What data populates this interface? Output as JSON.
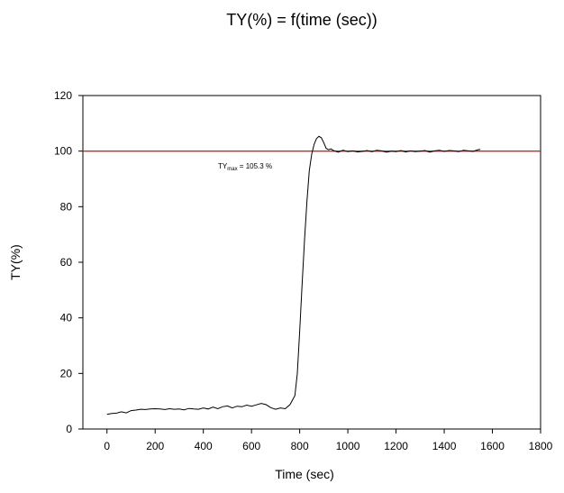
{
  "chart_data": {
    "type": "line",
    "title": "TY(%) = f(time (sec))",
    "xlabel": "Time (sec)",
    "ylabel": "TY(%)",
    "xlim": [
      -100,
      1800
    ],
    "ylim": [
      0,
      120
    ],
    "xticks": [
      0,
      200,
      400,
      600,
      800,
      1000,
      1200,
      1400,
      1600,
      1800
    ],
    "yticks": [
      0,
      20,
      40,
      60,
      80,
      100,
      120
    ],
    "grid": false,
    "reference_line": {
      "y": 100,
      "color": "#e0201a"
    },
    "annotation": {
      "base": "TY",
      "subscript": "max",
      "text": " = 105.3 %"
    },
    "series": [
      {
        "color": "#000000",
        "x": [
          0,
          20,
          40,
          60,
          80,
          100,
          120,
          140,
          160,
          180,
          200,
          220,
          240,
          260,
          280,
          300,
          320,
          340,
          360,
          380,
          400,
          420,
          440,
          460,
          480,
          500,
          520,
          540,
          560,
          580,
          600,
          620,
          640,
          660,
          680,
          700,
          720,
          740,
          760,
          780,
          790,
          800,
          810,
          820,
          830,
          840,
          850,
          860,
          870,
          880,
          890,
          900,
          910,
          920,
          930,
          940,
          960,
          980,
          1000,
          1020,
          1040,
          1060,
          1080,
          1100,
          1120,
          1140,
          1160,
          1180,
          1200,
          1220,
          1240,
          1260,
          1280,
          1300,
          1320,
          1340,
          1360,
          1380,
          1400,
          1420,
          1440,
          1460,
          1480,
          1500,
          1520,
          1540,
          1550
        ],
        "y": [
          5.3,
          5.6,
          5.7,
          6.2,
          5.8,
          6.6,
          6.8,
          7.1,
          7.0,
          7.2,
          7.3,
          7.2,
          7.0,
          7.3,
          7.1,
          7.2,
          6.9,
          7.4,
          7.2,
          7.1,
          7.6,
          7.2,
          7.9,
          7.3,
          8.0,
          8.3,
          7.6,
          8.2,
          8.0,
          8.6,
          8.2,
          8.7,
          9.2,
          8.8,
          7.7,
          7.1,
          7.6,
          7.3,
          8.8,
          12.0,
          20.0,
          35.0,
          52.0,
          68.0,
          82.0,
          93.0,
          99.0,
          102.5,
          104.5,
          105.3,
          104.8,
          103.0,
          101.0,
          100.5,
          100.8,
          100.2,
          99.6,
          100.3,
          99.8,
          100.1,
          99.7,
          99.9,
          100.2,
          99.8,
          100.3,
          100.1,
          99.6,
          100.0,
          99.8,
          100.2,
          99.7,
          100.1,
          99.8,
          100.0,
          100.2,
          99.6,
          100.1,
          100.3,
          99.9,
          100.2,
          100.1,
          99.8,
          100.3,
          100.1,
          99.9,
          100.5,
          100.6
        ]
      }
    ]
  }
}
